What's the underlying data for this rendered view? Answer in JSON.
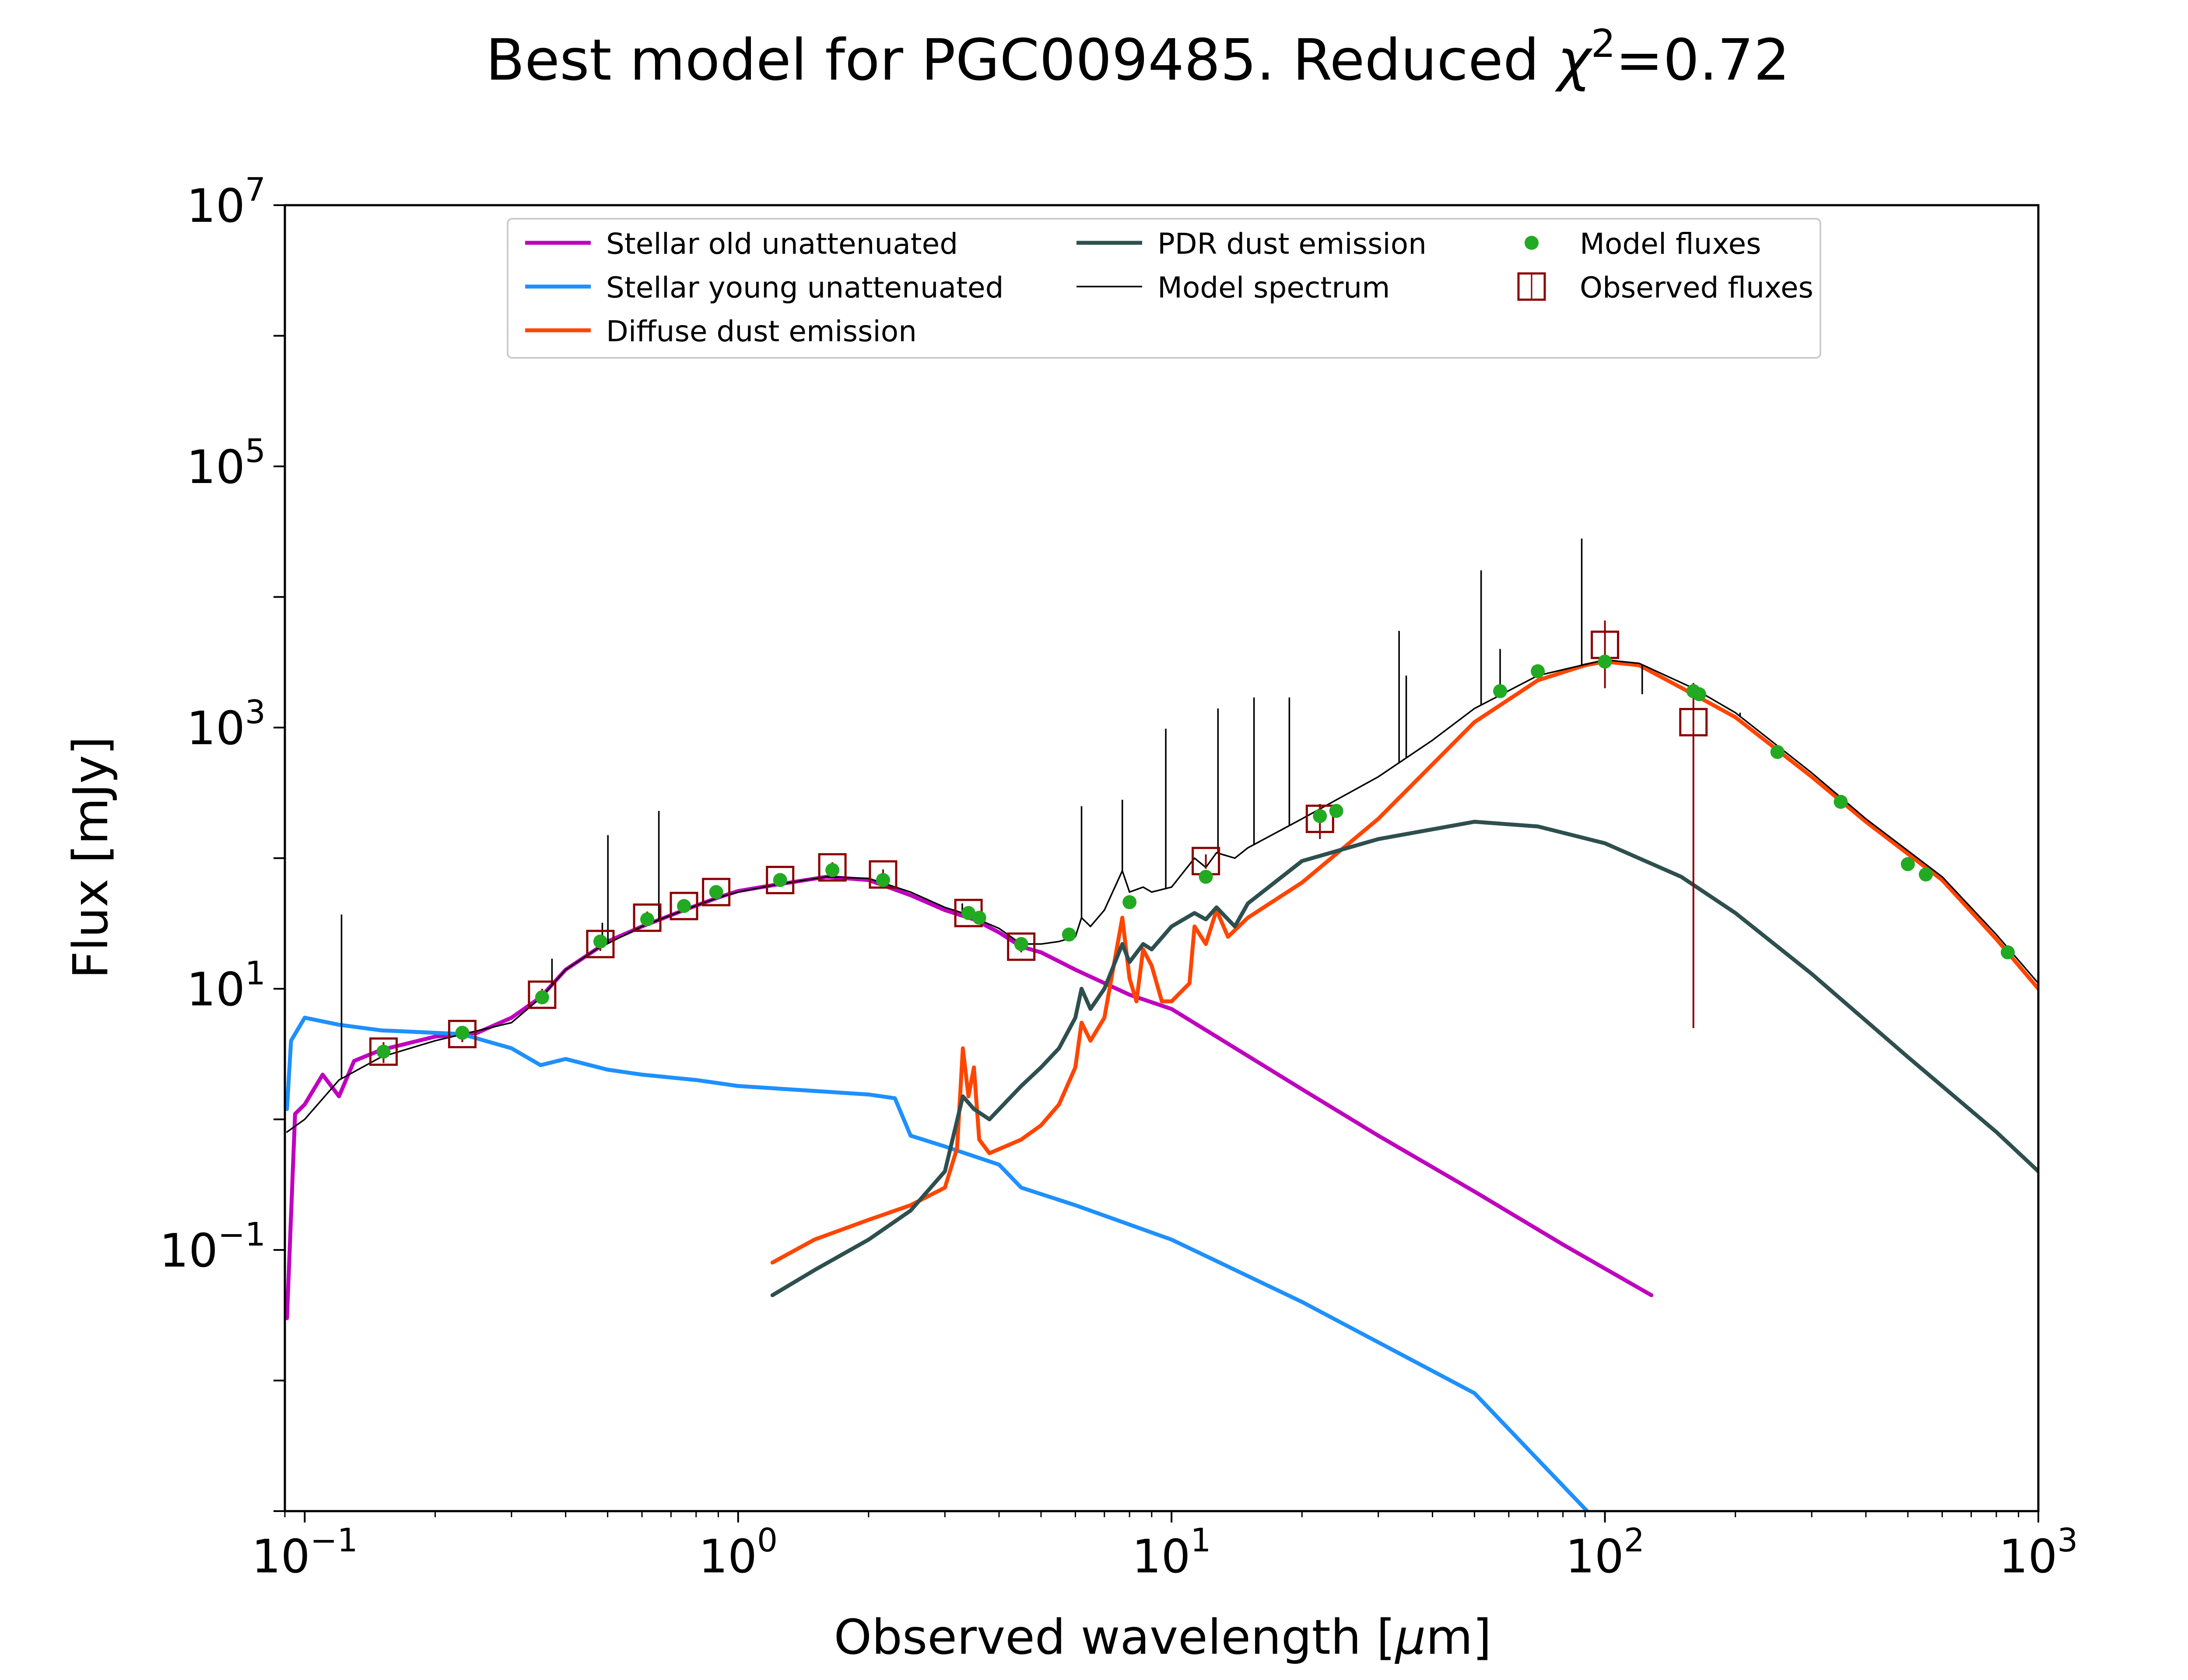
{
  "chart_data": {
    "type": "line",
    "title": "Best model for PGC009485. Reduced χ²=0.72",
    "title_parts": {
      "main": "Best model for PGC009485. Reduced ",
      "chi": "χ",
      "exp": "2",
      "value": "=0.72"
    },
    "xlabel": "Observed wavelength [μm]",
    "xlabel_parts": {
      "pre": "Observed wavelength [",
      "mu": "μ",
      "post": "m]"
    },
    "ylabel": "Flux [mJy]",
    "x_scale": "log",
    "y_scale": "log",
    "xlim": [
      0.09,
      1000
    ],
    "ylim": [
      0.001,
      10000000
    ],
    "x_ticks": [
      {
        "base": "10",
        "exp": "−1",
        "value": 0.1
      },
      {
        "base": "10",
        "exp": "0",
        "value": 1
      },
      {
        "base": "10",
        "exp": "1",
        "value": 10
      },
      {
        "base": "10",
        "exp": "2",
        "value": 100
      },
      {
        "base": "10",
        "exp": "3",
        "value": 1000
      }
    ],
    "y_ticks": [
      {
        "base": "10",
        "exp": "−1",
        "value": 0.1
      },
      {
        "base": "10",
        "exp": "1",
        "value": 10
      },
      {
        "base": "10",
        "exp": "3",
        "value": 1000
      },
      {
        "base": "10",
        "exp": "5",
        "value": 100000
      },
      {
        "base": "10",
        "exp": "7",
        "value": 10000000
      }
    ],
    "grid": false,
    "legend_position": "top-center",
    "legend": [
      {
        "label": "Stellar old unattenuated",
        "color": "#bf00bf",
        "kind": "line"
      },
      {
        "label": "Stellar young unattenuated",
        "color": "#1e90ff",
        "kind": "line"
      },
      {
        "label": "Diffuse dust emission",
        "color": "#ff4500",
        "kind": "line"
      },
      {
        "label": "PDR dust emission",
        "color": "#2f4f4f",
        "kind": "line"
      },
      {
        "label": "Model spectrum",
        "color": "#000000",
        "kind": "thinline"
      },
      {
        "label": "Model fluxes",
        "color": "#22aa22",
        "kind": "dot"
      },
      {
        "label": "Observed fluxes",
        "color": "#8b0000",
        "kind": "square"
      }
    ],
    "series": [
      {
        "name": "Stellar old unattenuated",
        "color": "#bf00bf",
        "points": [
          [
            0.091,
            0.03
          ],
          [
            0.095,
            1.1
          ],
          [
            0.1,
            1.3
          ],
          [
            0.11,
            2.2
          ],
          [
            0.12,
            1.5
          ],
          [
            0.13,
            2.8
          ],
          [
            0.15,
            3.4
          ],
          [
            0.2,
            4.3
          ],
          [
            0.25,
            4.6
          ],
          [
            0.3,
            6
          ],
          [
            0.35,
            8.6
          ],
          [
            0.4,
            14
          ],
          [
            0.47,
            20
          ],
          [
            0.5,
            23
          ],
          [
            0.6,
            30
          ],
          [
            0.75,
            40
          ],
          [
            0.9,
            50
          ],
          [
            1.0,
            56
          ],
          [
            1.2,
            62
          ],
          [
            1.6,
            72
          ],
          [
            2.0,
            68
          ],
          [
            2.5,
            52
          ],
          [
            3.0,
            40
          ],
          [
            3.5,
            34
          ],
          [
            4.0,
            27
          ],
          [
            4.5,
            21
          ],
          [
            5.0,
            19
          ],
          [
            6.0,
            14
          ],
          [
            8.0,
            9
          ],
          [
            10,
            7
          ],
          [
            20,
            1.7
          ],
          [
            30,
            0.75
          ],
          [
            50,
            0.28
          ],
          [
            80,
            0.11
          ],
          [
            128,
            0.045
          ]
        ]
      },
      {
        "name": "Stellar young unattenuated",
        "color": "#1e90ff",
        "points": [
          [
            0.091,
            1.2
          ],
          [
            0.093,
            4
          ],
          [
            0.1,
            6
          ],
          [
            0.12,
            5.3
          ],
          [
            0.15,
            4.8
          ],
          [
            0.2,
            4.6
          ],
          [
            0.23,
            4.5
          ],
          [
            0.3,
            3.5
          ],
          [
            0.35,
            2.6
          ],
          [
            0.4,
            2.9
          ],
          [
            0.5,
            2.4
          ],
          [
            0.6,
            2.2
          ],
          [
            0.8,
            2.0
          ],
          [
            1.0,
            1.8
          ],
          [
            1.5,
            1.65
          ],
          [
            2.0,
            1.55
          ],
          [
            2.3,
            1.45
          ],
          [
            2.5,
            0.75
          ],
          [
            3.0,
            0.62
          ],
          [
            4.0,
            0.45
          ],
          [
            4.5,
            0.3
          ],
          [
            6.0,
            0.22
          ],
          [
            10,
            0.12
          ],
          [
            20,
            0.04
          ],
          [
            50,
            0.008
          ],
          [
            91,
            0.001
          ]
        ]
      },
      {
        "name": "Diffuse dust emission",
        "color": "#ff4500",
        "points": [
          [
            1.2,
            0.08
          ],
          [
            1.5,
            0.12
          ],
          [
            2.0,
            0.17
          ],
          [
            2.5,
            0.22
          ],
          [
            3.0,
            0.3
          ],
          [
            3.2,
            0.6
          ],
          [
            3.3,
            3.5
          ],
          [
            3.4,
            1.5
          ],
          [
            3.5,
            2.5
          ],
          [
            3.6,
            0.7
          ],
          [
            3.8,
            0.55
          ],
          [
            4.5,
            0.7
          ],
          [
            5.0,
            0.9
          ],
          [
            5.5,
            1.3
          ],
          [
            6.0,
            2.5
          ],
          [
            6.2,
            5.5
          ],
          [
            6.5,
            4.0
          ],
          [
            7.0,
            6
          ],
          [
            7.7,
            35
          ],
          [
            8.0,
            12
          ],
          [
            8.3,
            8
          ],
          [
            8.6,
            20
          ],
          [
            9.0,
            15
          ],
          [
            9.5,
            8
          ],
          [
            10,
            8
          ],
          [
            11,
            11
          ],
          [
            11.3,
            30
          ],
          [
            12,
            22
          ],
          [
            12.7,
            40
          ],
          [
            13.5,
            25
          ],
          [
            15,
            35
          ],
          [
            20,
            65
          ],
          [
            30,
            200
          ],
          [
            50,
            1100
          ],
          [
            70,
            2300
          ],
          [
            90,
            3000
          ],
          [
            100,
            3200
          ],
          [
            120,
            3000
          ],
          [
            160,
            1800
          ],
          [
            200,
            1200
          ],
          [
            300,
            420
          ],
          [
            400,
            190
          ],
          [
            600,
            68
          ],
          [
            800,
            24
          ],
          [
            1000,
            10
          ]
        ]
      },
      {
        "name": "PDR dust emission",
        "color": "#2f4f4f",
        "points": [
          [
            1.2,
            0.045
          ],
          [
            1.5,
            0.07
          ],
          [
            2.0,
            0.12
          ],
          [
            2.5,
            0.2
          ],
          [
            3.0,
            0.4
          ],
          [
            3.3,
            1.5
          ],
          [
            3.5,
            1.2
          ],
          [
            3.8,
            1.0
          ],
          [
            4.5,
            1.8
          ],
          [
            5.0,
            2.5
          ],
          [
            5.5,
            3.5
          ],
          [
            6.0,
            6
          ],
          [
            6.2,
            10
          ],
          [
            6.5,
            7
          ],
          [
            7.0,
            10
          ],
          [
            7.7,
            22
          ],
          [
            8.0,
            16
          ],
          [
            8.6,
            22
          ],
          [
            9.0,
            20
          ],
          [
            10,
            30
          ],
          [
            11.3,
            38
          ],
          [
            12,
            34
          ],
          [
            12.7,
            42
          ],
          [
            14,
            30
          ],
          [
            15,
            45
          ],
          [
            20,
            95
          ],
          [
            30,
            140
          ],
          [
            50,
            190
          ],
          [
            70,
            175
          ],
          [
            100,
            130
          ],
          [
            150,
            72
          ],
          [
            200,
            38
          ],
          [
            300,
            13
          ],
          [
            500,
            3
          ],
          [
            800,
            0.8
          ],
          [
            1000,
            0.4
          ]
        ]
      },
      {
        "name": "Model spectrum",
        "color": "#000000",
        "points": [
          [
            0.091,
            0.8
          ],
          [
            0.1,
            1.0
          ],
          [
            0.12,
            2.0
          ],
          [
            0.15,
            3.0
          ],
          [
            0.2,
            4.0
          ],
          [
            0.3,
            5.5
          ],
          [
            0.35,
            8.5
          ],
          [
            0.4,
            14
          ],
          [
            0.47,
            20
          ],
          [
            0.6,
            30
          ],
          [
            0.75,
            40
          ],
          [
            0.9,
            50
          ],
          [
            1.0,
            55
          ],
          [
            1.2,
            62
          ],
          [
            1.6,
            72
          ],
          [
            2.0,
            70
          ],
          [
            2.5,
            55
          ],
          [
            3.0,
            42
          ],
          [
            3.3,
            38
          ],
          [
            3.5,
            35
          ],
          [
            4.0,
            29
          ],
          [
            4.5,
            22
          ],
          [
            5.0,
            22
          ],
          [
            5.5,
            23
          ],
          [
            6.0,
            25
          ],
          [
            6.2,
            35
          ],
          [
            6.5,
            30
          ],
          [
            7.0,
            40
          ],
          [
            7.7,
            80
          ],
          [
            8.0,
            55
          ],
          [
            8.6,
            60
          ],
          [
            9.0,
            55
          ],
          [
            10,
            60
          ],
          [
            11.3,
            100
          ],
          [
            12,
            85
          ],
          [
            12.7,
            110
          ],
          [
            14,
            100
          ],
          [
            15,
            120
          ],
          [
            20,
            200
          ],
          [
            30,
            420
          ],
          [
            40,
            800
          ],
          [
            50,
            1400
          ],
          [
            70,
            2500
          ],
          [
            100,
            3300
          ],
          [
            120,
            3100
          ],
          [
            160,
            2000
          ],
          [
            200,
            1300
          ],
          [
            300,
            450
          ],
          [
            400,
            200
          ],
          [
            600,
            72
          ],
          [
            800,
            26
          ],
          [
            1000,
            11
          ]
        ]
      }
    ],
    "emission_lines": [
      [
        0.1216,
        37
      ],
      [
        0.372,
        17
      ],
      [
        0.4861,
        32
      ],
      [
        0.5007,
        150
      ],
      [
        0.6563,
        230
      ],
      [
        3.29,
        45
      ],
      [
        6.2,
        250
      ],
      [
        7.7,
        280
      ],
      [
        9.7,
        980
      ],
      [
        12.8,
        1400
      ],
      [
        15.5,
        1700
      ],
      [
        18.7,
        1700
      ],
      [
        33.5,
        5500
      ],
      [
        34.8,
        2500
      ],
      [
        51.8,
        16000
      ],
      [
        57.3,
        4000
      ],
      [
        88.4,
        28000
      ],
      [
        121.9,
        1800
      ],
      [
        157.7,
        2000
      ],
      [
        205,
        1300
      ]
    ],
    "model_fluxes": [
      [
        0.152,
        3.3
      ],
      [
        0.231,
        4.6
      ],
      [
        0.353,
        8.6
      ],
      [
        0.481,
        23
      ],
      [
        0.617,
        34
      ],
      [
        0.75,
        43
      ],
      [
        0.89,
        55
      ],
      [
        1.25,
        68
      ],
      [
        1.65,
        81
      ],
      [
        2.16,
        68
      ],
      [
        3.4,
        38
      ],
      [
        3.6,
        35
      ],
      [
        4.5,
        22
      ],
      [
        5.8,
        26
      ],
      [
        8.0,
        46
      ],
      [
        12,
        72
      ],
      [
        22,
        210
      ],
      [
        24,
        230
      ],
      [
        57.3,
        1900
      ],
      [
        70,
        2700
      ],
      [
        100,
        3200
      ],
      [
        160,
        1900
      ],
      [
        165,
        1800
      ],
      [
        250,
        650
      ],
      [
        350,
        270
      ],
      [
        500,
        90
      ],
      [
        550,
        75
      ],
      [
        850,
        19
      ]
    ],
    "observed_fluxes": [
      [
        0.152,
        3.3,
        0.6
      ],
      [
        0.231,
        4.5,
        0.6
      ],
      [
        0.353,
        9.0,
        1.0
      ],
      [
        0.481,
        22,
        2.5
      ],
      [
        0.617,
        35,
        4.0
      ],
      [
        0.75,
        43,
        4.5
      ],
      [
        0.89,
        55,
        5.0
      ],
      [
        1.25,
        68,
        6.0
      ],
      [
        1.65,
        85,
        8.0
      ],
      [
        2.16,
        75,
        7.0
      ],
      [
        3.4,
        38,
        3.5
      ],
      [
        4.5,
        21,
        2.0
      ],
      [
        12,
        95,
        12
      ],
      [
        22,
        200,
        60
      ],
      [
        100,
        4300,
        2300
      ],
      [
        160,
        1100,
        1095
      ]
    ]
  }
}
